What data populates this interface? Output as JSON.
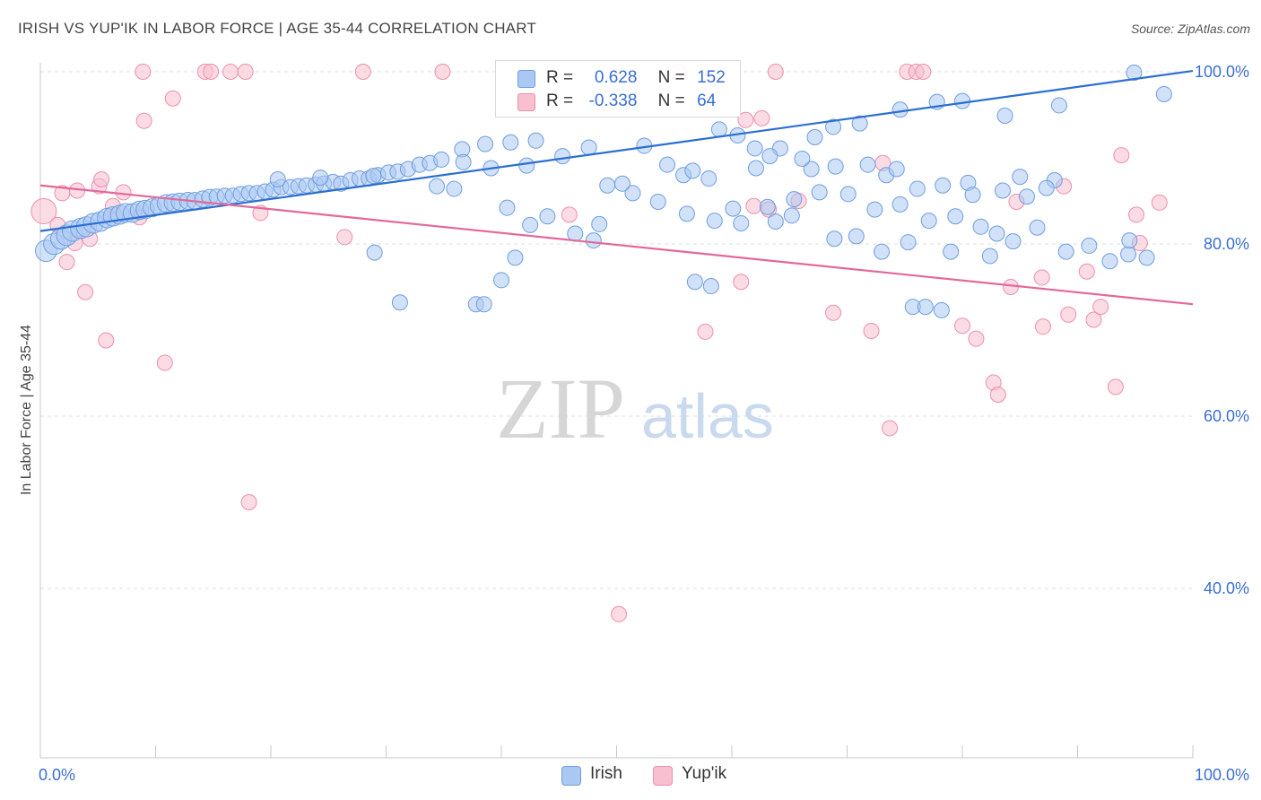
{
  "title": "IRISH VS YUP'IK IN LABOR FORCE | AGE 35-44 CORRELATION CHART",
  "source": "Source: ZipAtlas.com",
  "watermark": {
    "zip": "ZIP",
    "atlas": "atlas"
  },
  "legend": {
    "irish": {
      "r_label": "R =",
      "r_value": "0.628",
      "n_label": "N =",
      "n_value": "152"
    },
    "yupik": {
      "r_label": "R =",
      "r_value": "-0.338",
      "n_label": "N =",
      "n_value": "64"
    }
  },
  "colors": {
    "irish_fill": "#aac8f2",
    "irish_stroke": "#6f9ee0",
    "irish_line": "#2b6fd0",
    "yupik_fill": "#f8bfd0",
    "yupik_stroke": "#ec8fac",
    "yupik_line": "#e3689a",
    "axis_label": "#3a6fd0",
    "grid": "#dddddd"
  },
  "chart_data": {
    "type": "scatter",
    "title": "IRISH VS YUP'IK IN LABOR FORCE | AGE 35-44 CORRELATION CHART",
    "xlabel": "",
    "ylabel": "In Labor Force | Age 35-44",
    "xlim": [
      0,
      100
    ],
    "ylim": [
      20,
      102
    ],
    "x_tick_labels": [
      "0.0%",
      "100.0%"
    ],
    "y_ticks": [
      40,
      60,
      80,
      100
    ],
    "y_tick_labels": [
      "40.0%",
      "60.0%",
      "80.0%",
      "100.0%"
    ],
    "grid": true,
    "legend_position": "bottom",
    "series": [
      {
        "name": "Irish",
        "trend": {
          "x": [
            0,
            100
          ],
          "y": [
            81.5,
            100.1
          ]
        },
        "points": [
          [
            0.5,
            79.2
          ],
          [
            1.2,
            80.0
          ],
          [
            1.8,
            80.6
          ],
          [
            2.3,
            81.0
          ],
          [
            2.8,
            81.5
          ],
          [
            3.5,
            81.8
          ],
          [
            4.0,
            82.0
          ],
          [
            4.6,
            82.4
          ],
          [
            5.2,
            82.6
          ],
          [
            5.8,
            83.0
          ],
          [
            6.3,
            83.2
          ],
          [
            6.9,
            83.4
          ],
          [
            7.4,
            83.6
          ],
          [
            8.0,
            83.6
          ],
          [
            8.6,
            83.9
          ],
          [
            9.1,
            84.0
          ],
          [
            9.7,
            84.2
          ],
          [
            10.3,
            84.4
          ],
          [
            10.9,
            84.7
          ],
          [
            11.5,
            84.8
          ],
          [
            12.1,
            84.9
          ],
          [
            12.8,
            85.0
          ],
          [
            13.4,
            85.0
          ],
          [
            14.1,
            85.2
          ],
          [
            14.7,
            85.4
          ],
          [
            15.3,
            85.5
          ],
          [
            16.0,
            85.6
          ],
          [
            16.7,
            85.6
          ],
          [
            17.4,
            85.8
          ],
          [
            18.1,
            85.9
          ],
          [
            18.8,
            85.9
          ],
          [
            19.5,
            86.1
          ],
          [
            20.2,
            86.3
          ],
          [
            20.9,
            86.6
          ],
          [
            21.7,
            86.6
          ],
          [
            22.4,
            86.7
          ],
          [
            23.1,
            86.8
          ],
          [
            23.9,
            86.9
          ],
          [
            24.6,
            87.0
          ],
          [
            25.4,
            87.2
          ],
          [
            26.1,
            87.0
          ],
          [
            26.9,
            87.4
          ],
          [
            27.7,
            87.6
          ],
          [
            28.5,
            87.6
          ],
          [
            29.3,
            88.0
          ],
          [
            30.2,
            88.3
          ],
          [
            31.0,
            88.4
          ],
          [
            31.9,
            88.7
          ],
          [
            32.9,
            89.2
          ],
          [
            33.8,
            89.4
          ],
          [
            34.8,
            89.8
          ],
          [
            36.6,
            91.0
          ],
          [
            38.6,
            91.6
          ],
          [
            40.8,
            91.8
          ],
          [
            43.0,
            92.0
          ],
          [
            45.3,
            90.2
          ],
          [
            47.6,
            91.2
          ],
          [
            49.2,
            86.8
          ],
          [
            51.4,
            85.9
          ],
          [
            53.6,
            84.9
          ],
          [
            55.8,
            88.0
          ],
          [
            58.0,
            87.6
          ],
          [
            60.1,
            84.1
          ],
          [
            62.1,
            88.8
          ],
          [
            64.2,
            91.1
          ],
          [
            66.9,
            88.7
          ],
          [
            69.0,
            89.0
          ],
          [
            71.8,
            89.2
          ],
          [
            73.4,
            88.0
          ],
          [
            74.6,
            84.6
          ],
          [
            76.1,
            86.4
          ],
          [
            78.3,
            86.8
          ],
          [
            80.5,
            87.1
          ],
          [
            85.0,
            87.8
          ],
          [
            88.0,
            87.4
          ],
          [
            20.6,
            87.5
          ],
          [
            24.3,
            87.7
          ],
          [
            28.9,
            87.9
          ],
          [
            34.4,
            86.7
          ],
          [
            36.7,
            89.5
          ],
          [
            39.1,
            88.8
          ],
          [
            40.5,
            84.2
          ],
          [
            42.2,
            89.1
          ],
          [
            44.0,
            83.2
          ],
          [
            46.4,
            81.2
          ],
          [
            48.5,
            82.3
          ],
          [
            50.5,
            87.0
          ],
          [
            52.4,
            91.4
          ],
          [
            54.4,
            89.2
          ],
          [
            56.6,
            88.5
          ],
          [
            58.9,
            93.3
          ],
          [
            60.5,
            92.6
          ],
          [
            62.0,
            91.1
          ],
          [
            63.3,
            90.2
          ],
          [
            66.1,
            89.9
          ],
          [
            67.2,
            92.4
          ],
          [
            68.8,
            93.6
          ],
          [
            71.1,
            94.0
          ],
          [
            74.6,
            95.6
          ],
          [
            77.8,
            96.5
          ],
          [
            80.0,
            96.6
          ],
          [
            83.7,
            94.9
          ],
          [
            88.4,
            96.1
          ],
          [
            94.9,
            99.9
          ],
          [
            97.5,
            97.4
          ],
          [
            56.1,
            83.5
          ],
          [
            58.5,
            82.7
          ],
          [
            60.8,
            82.4
          ],
          [
            63.1,
            84.3
          ],
          [
            65.4,
            85.2
          ],
          [
            67.6,
            86.0
          ],
          [
            70.1,
            85.8
          ],
          [
            72.4,
            84.0
          ],
          [
            75.3,
            80.2
          ],
          [
            77.1,
            82.7
          ],
          [
            79.4,
            83.2
          ],
          [
            81.6,
            82.0
          ],
          [
            84.4,
            80.3
          ],
          [
            86.5,
            81.9
          ],
          [
            89.0,
            79.1
          ],
          [
            91.0,
            79.8
          ],
          [
            92.8,
            78.0
          ],
          [
            94.4,
            78.8
          ],
          [
            96.0,
            78.4
          ],
          [
            29.0,
            79.0
          ],
          [
            31.2,
            73.2
          ],
          [
            48.0,
            80.4
          ],
          [
            56.8,
            75.6
          ],
          [
            58.2,
            75.1
          ],
          [
            63.8,
            82.6
          ],
          [
            65.2,
            83.3
          ],
          [
            68.9,
            80.6
          ],
          [
            70.8,
            80.9
          ],
          [
            73.0,
            79.1
          ],
          [
            79.0,
            79.1
          ],
          [
            82.4,
            78.6
          ],
          [
            37.8,
            73.0
          ],
          [
            38.5,
            73.0
          ],
          [
            40.0,
            75.8
          ],
          [
            41.2,
            78.4
          ],
          [
            42.5,
            82.2
          ],
          [
            75.7,
            72.7
          ],
          [
            76.8,
            72.7
          ],
          [
            78.2,
            72.3
          ],
          [
            83.0,
            81.2
          ],
          [
            94.5,
            80.4
          ],
          [
            74.3,
            88.7
          ],
          [
            80.9,
            85.7
          ],
          [
            83.5,
            86.2
          ],
          [
            35.9,
            86.4
          ],
          [
            85.6,
            85.5
          ],
          [
            87.3,
            86.5
          ]
        ]
      },
      {
        "name": "Yup'ik",
        "trend": {
          "x": [
            0,
            100
          ],
          "y": [
            86.8,
            73.0
          ]
        },
        "points": [
          [
            0.3,
            83.8
          ],
          [
            1.5,
            82.2
          ],
          [
            1.9,
            85.9
          ],
          [
            2.3,
            77.9
          ],
          [
            3.0,
            80.1
          ],
          [
            3.2,
            86.2
          ],
          [
            3.9,
            74.4
          ],
          [
            4.3,
            80.6
          ],
          [
            5.1,
            86.7
          ],
          [
            5.3,
            87.5
          ],
          [
            5.7,
            68.8
          ],
          [
            6.3,
            84.4
          ],
          [
            7.2,
            86.0
          ],
          [
            8.6,
            83.1
          ],
          [
            8.9,
            100.0
          ],
          [
            9.0,
            94.3
          ],
          [
            10.8,
            66.2
          ],
          [
            11.5,
            96.9
          ],
          [
            14.3,
            100.0
          ],
          [
            14.8,
            100.0
          ],
          [
            16.5,
            100.0
          ],
          [
            17.8,
            100.0
          ],
          [
            18.1,
            50.0
          ],
          [
            19.1,
            83.6
          ],
          [
            26.4,
            80.8
          ],
          [
            28.0,
            100.0
          ],
          [
            34.9,
            100.0
          ],
          [
            45.9,
            83.4
          ],
          [
            50.2,
            37.0
          ],
          [
            55.3,
            100.0
          ],
          [
            57.7,
            69.8
          ],
          [
            58.4,
            100.0
          ],
          [
            60.8,
            75.6
          ],
          [
            61.2,
            94.4
          ],
          [
            61.9,
            84.4
          ],
          [
            62.6,
            94.6
          ],
          [
            63.2,
            84.0
          ],
          [
            63.8,
            100.0
          ],
          [
            65.8,
            85.0
          ],
          [
            68.8,
            72.0
          ],
          [
            72.1,
            69.9
          ],
          [
            73.1,
            89.4
          ],
          [
            73.7,
            58.6
          ],
          [
            75.2,
            100.0
          ],
          [
            76.0,
            100.0
          ],
          [
            76.6,
            100.0
          ],
          [
            80.0,
            70.5
          ],
          [
            81.2,
            69.0
          ],
          [
            82.7,
            63.9
          ],
          [
            83.1,
            62.5
          ],
          [
            84.2,
            75.0
          ],
          [
            84.7,
            84.9
          ],
          [
            86.9,
            76.1
          ],
          [
            87.0,
            70.4
          ],
          [
            88.8,
            86.7
          ],
          [
            89.2,
            71.8
          ],
          [
            90.8,
            76.8
          ],
          [
            91.4,
            71.2
          ],
          [
            92.0,
            72.7
          ],
          [
            93.3,
            63.4
          ],
          [
            93.8,
            90.3
          ],
          [
            95.1,
            83.4
          ],
          [
            95.4,
            80.1
          ],
          [
            97.1,
            84.8
          ]
        ]
      }
    ]
  }
}
